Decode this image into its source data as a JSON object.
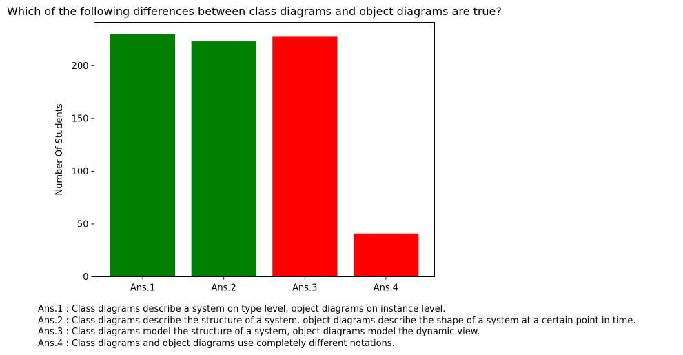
{
  "chart_data": {
    "type": "bar",
    "title": "Which of the following differences between class diagrams and object diagrams are true?",
    "xlabel": "",
    "ylabel": "Number Of Students",
    "categories": [
      "Ans.1",
      "Ans.2",
      "Ans.3",
      "Ans.4"
    ],
    "values": [
      230,
      223,
      228,
      41
    ],
    "bar_colors": [
      "#008000",
      "#008000",
      "#ff0000",
      "#ff0000"
    ],
    "ylim": [
      0,
      241
    ],
    "yticks": [
      0,
      50,
      100,
      150,
      200
    ],
    "grid": false,
    "legend": "none"
  },
  "footnotes": [
    "Ans.1 : Class diagrams describe a system on type level, object diagrams on instance level.",
    "Ans.2 : Class diagrams describe the structure of a system. object diagrams describe the shape of a system at a certain point in time.",
    "Ans.3 : Class diagrams model the structure of a system, object diagrams model the dynamic view.",
    "Ans.4 : Class diagrams and object diagrams use completely different notations."
  ]
}
